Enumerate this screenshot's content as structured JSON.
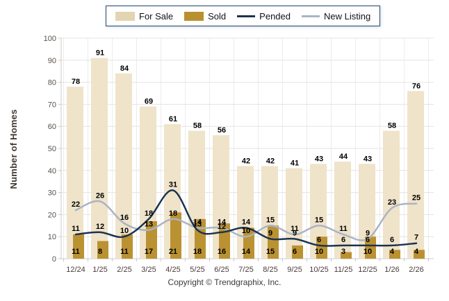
{
  "legend": {
    "items": [
      {
        "id": "for-sale",
        "label": "For Sale",
        "type": "bar",
        "color": "#E3D4B2"
      },
      {
        "id": "sold",
        "label": "Sold",
        "type": "bar",
        "color": "#B9902F"
      },
      {
        "id": "pended",
        "label": "Pended",
        "type": "line",
        "color": "#1C3350"
      },
      {
        "id": "new-listing",
        "label": "New Listing",
        "type": "line",
        "color": "#ABB4C4"
      }
    ]
  },
  "chart_data": {
    "type": "combo",
    "title": "",
    "categories": [
      "12/24",
      "1/25",
      "2/25",
      "3/25",
      "4/25",
      "5/25",
      "6/25",
      "7/25",
      "8/25",
      "9/25",
      "10/25",
      "11/25",
      "12/25",
      "1/26",
      "2/26"
    ],
    "series": [
      {
        "name": "For Sale",
        "type": "bar",
        "color": "#EFE3C9",
        "values": [
          78,
          91,
          84,
          69,
          61,
          58,
          56,
          42,
          42,
          41,
          43,
          44,
          43,
          58,
          76
        ]
      },
      {
        "name": "Sold",
        "type": "bar",
        "color": "#BB9232",
        "values": [
          11,
          8,
          11,
          17,
          21,
          18,
          16,
          14,
          15,
          6,
          10,
          3,
          10,
          4,
          4
        ]
      },
      {
        "name": "Pended",
        "type": "line",
        "color": "#1C3350",
        "values": [
          11,
          12,
          10,
          18,
          31,
          13,
          12,
          14,
          9,
          9,
          6,
          6,
          6,
          6,
          7
        ]
      },
      {
        "name": "New Listing",
        "type": "line",
        "color": "#ABB4C4",
        "values": [
          22,
          26,
          16,
          13,
          18,
          14,
          14,
          10,
          15,
          11,
          15,
          11,
          9,
          23,
          25
        ]
      }
    ],
    "xlabel": "",
    "ylabel": "Number of Homes",
    "ylim": [
      0,
      100
    ],
    "ytick_step": 10,
    "grid": true,
    "legend_position": "top"
  },
  "footer": {
    "copyright": "Copyright © Trendgraphix, Inc."
  }
}
